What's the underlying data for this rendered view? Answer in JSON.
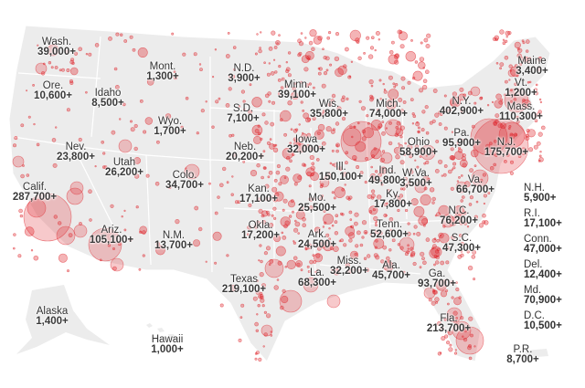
{
  "map": {
    "land_color": "#ececec",
    "bubble_color": "#e0282e",
    "states": [
      {
        "name": "Wash.",
        "value": "39,000+"
      },
      {
        "name": "Mont.",
        "value": "1,300+"
      },
      {
        "name": "N.D.",
        "value": "3,900+"
      },
      {
        "name": "Minn.",
        "value": "39,100+"
      },
      {
        "name": "Ore.",
        "value": "10,600+"
      },
      {
        "name": "Idaho",
        "value": "8,500+"
      },
      {
        "name": "S.D.",
        "value": "7,100+"
      },
      {
        "name": "Wis.",
        "value": "35,800+"
      },
      {
        "name": "Mich.",
        "value": "74,000+"
      },
      {
        "name": "Wyo.",
        "value": "1,700+"
      },
      {
        "name": "Iowa",
        "value": "32,000+"
      },
      {
        "name": "Nev.",
        "value": "23,800+"
      },
      {
        "name": "Utah",
        "value": "26,200+"
      },
      {
        "name": "Neb.",
        "value": "20,200+"
      },
      {
        "name": "Ill.",
        "value": "150,100+"
      },
      {
        "name": "Ohio",
        "value": "58,900+"
      },
      {
        "name": "Ind.",
        "value": "49,800+"
      },
      {
        "name": "W.Va.",
        "value": "3,500+"
      },
      {
        "name": "Pa.",
        "value": "95,900+"
      },
      {
        "name": "N.Y.",
        "value": "402,900+"
      },
      {
        "name": "Vt.",
        "value": "1,200+"
      },
      {
        "name": "Maine",
        "value": "3,400+"
      },
      {
        "name": "Mass.",
        "value": "110,300+"
      },
      {
        "name": "N.J.",
        "value": "175,700+"
      },
      {
        "name": "Va.",
        "value": "66,700+"
      },
      {
        "name": "Colo.",
        "value": "34,700+"
      },
      {
        "name": "Calif.",
        "value": "287,700+"
      },
      {
        "name": "Kan.",
        "value": "17,100+"
      },
      {
        "name": "Mo.",
        "value": "25,500+"
      },
      {
        "name": "Ky.",
        "value": "17,800+"
      },
      {
        "name": "N.C.",
        "value": "76,200+"
      },
      {
        "name": "Tenn.",
        "value": "52,600+"
      },
      {
        "name": "Ark.",
        "value": "24,500+"
      },
      {
        "name": "Okla.",
        "value": "17,200+"
      },
      {
        "name": "Ariz.",
        "value": "105,100+"
      },
      {
        "name": "N.M.",
        "value": "13,700+"
      },
      {
        "name": "S.C.",
        "value": "47,300+"
      },
      {
        "name": "Miss.",
        "value": "32,200+"
      },
      {
        "name": "La.",
        "value": "68,300+"
      },
      {
        "name": "Ala.",
        "value": "45,700+"
      },
      {
        "name": "Ga.",
        "value": "93,700+"
      },
      {
        "name": "Texas",
        "value": "219,100+"
      },
      {
        "name": "Alaska",
        "value": "1,400+"
      },
      {
        "name": "Hawaii",
        "value": "1,000+"
      },
      {
        "name": "Fla.",
        "value": "213,700+"
      },
      {
        "name": "P.R.",
        "value": "8,700+"
      }
    ],
    "side_list": [
      {
        "name": "N.H.",
        "value": "5,900+"
      },
      {
        "name": "R.I.",
        "value": "17,100+"
      },
      {
        "name": "Conn.",
        "value": "47,000+"
      },
      {
        "name": "Del.",
        "value": "12,400+"
      },
      {
        "name": "Md.",
        "value": "70,900+"
      },
      {
        "name": "D.C.",
        "value": "10,500+"
      }
    ]
  }
}
